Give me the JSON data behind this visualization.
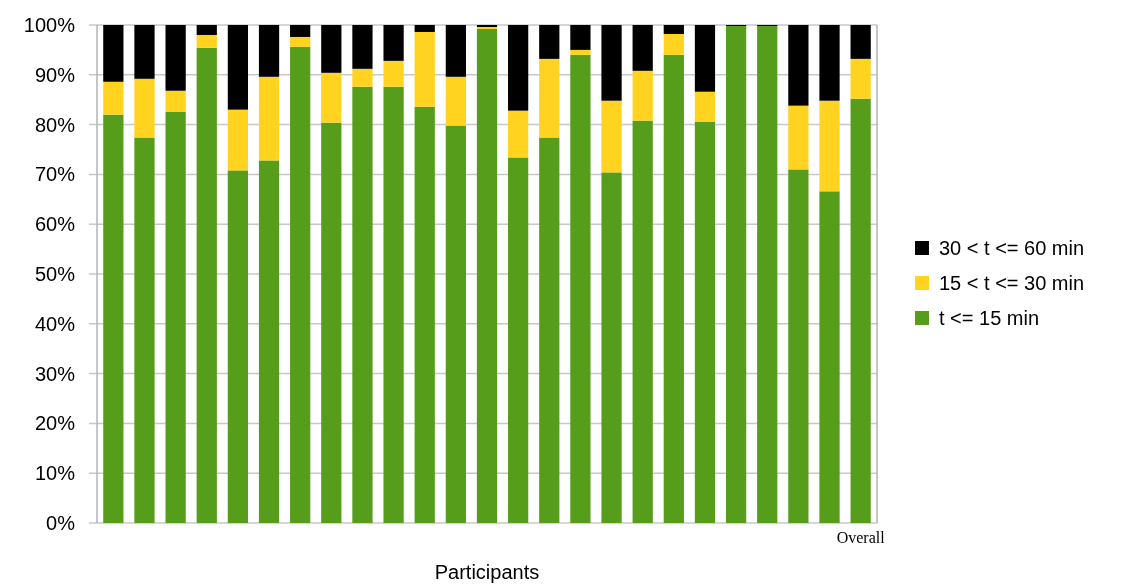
{
  "chart_data": {
    "type": "bar",
    "stacked": true,
    "xlabel": "Participants",
    "categories": [
      null,
      null,
      null,
      null,
      null,
      null,
      null,
      null,
      null,
      null,
      null,
      null,
      null,
      null,
      null,
      null,
      null,
      null,
      null,
      null,
      null,
      null,
      null,
      null,
      "Overall"
    ],
    "series": [
      {
        "name": "t <= 15 min",
        "color": "#579d1c",
        "values": [
          82,
          77.4,
          82.6,
          95.4,
          70.8,
          72.8,
          95.6,
          80.4,
          87.6,
          87.6,
          83.6,
          79.8,
          99.2,
          73.4,
          77.4,
          94,
          70.4,
          80.8,
          94,
          80.6,
          99.8,
          99.8,
          71,
          66.6,
          85.2
        ]
      },
      {
        "name": "15 < t <= 30 min",
        "color": "#ffd320",
        "values": [
          6.6,
          11.8,
          4.2,
          2.6,
          12.2,
          16.8,
          2,
          10,
          3.6,
          5.2,
          15,
          9.8,
          0.4,
          9.4,
          15.8,
          1,
          14.4,
          10,
          4.2,
          6,
          0,
          0,
          12.8,
          18.2,
          8
        ]
      },
      {
        "name": "30 < t <= 60 min",
        "color": "#000000",
        "values": [
          11.4,
          10.8,
          13.2,
          2,
          17,
          10.4,
          2.4,
          9.6,
          8.8,
          7.2,
          1.4,
          10.4,
          0.4,
          17.2,
          6.8,
          5,
          15.2,
          9.2,
          1.8,
          13.4,
          0.2,
          0.2,
          16.2,
          15.2,
          6.8
        ]
      }
    ],
    "ylim": [
      0,
      100
    ],
    "yticks": [
      {
        "value": 0,
        "label": "0%"
      },
      {
        "value": 10,
        "label": "10%"
      },
      {
        "value": 20,
        "label": "20%"
      },
      {
        "value": 30,
        "label": "30%"
      },
      {
        "value": 40,
        "label": "40%"
      },
      {
        "value": 50,
        "label": "50%"
      },
      {
        "value": 60,
        "label": "60%"
      },
      {
        "value": 70,
        "label": "70%"
      },
      {
        "value": 80,
        "label": "80%"
      },
      {
        "value": 90,
        "label": "90%"
      },
      {
        "value": 100,
        "label": "100%"
      }
    ],
    "grid": "y",
    "legend": "right"
  }
}
